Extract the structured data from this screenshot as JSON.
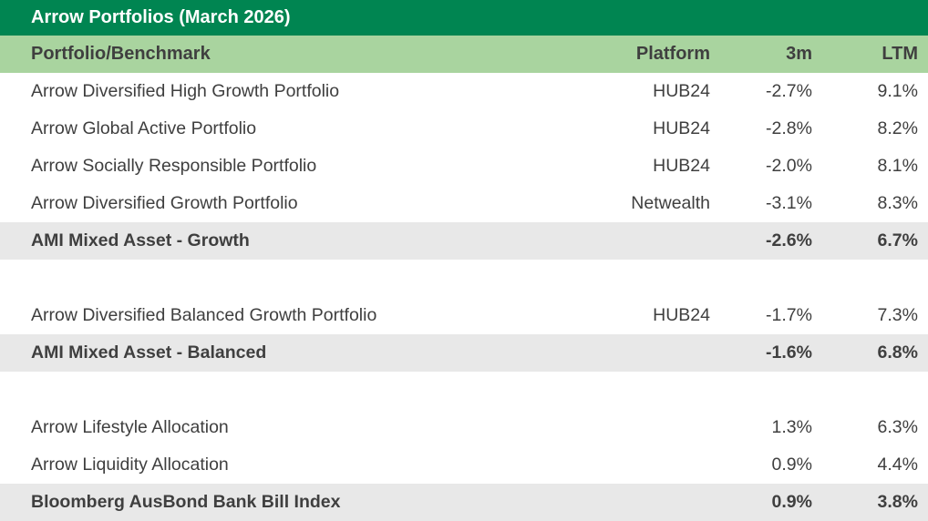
{
  "title_bar": {
    "title": "Arrow Portfolios (March 2026)"
  },
  "table": {
    "columns": {
      "name": "Portfolio/Benchmark",
      "platform": "Platform",
      "m3": "3m",
      "ltm": "LTM"
    },
    "rows": [
      {
        "type": "data",
        "name": "Arrow Diversified High Growth Portfolio",
        "platform": "HUB24",
        "m3": "-2.7%",
        "ltm": "9.1%"
      },
      {
        "type": "data",
        "name": "Arrow Global Active Portfolio",
        "platform": "HUB24",
        "m3": "-2.8%",
        "ltm": "8.2%"
      },
      {
        "type": "data",
        "name": "Arrow Socially Responsible Portfolio",
        "platform": "HUB24",
        "m3": "-2.0%",
        "ltm": "8.1%"
      },
      {
        "type": "data",
        "name": "Arrow Diversified Growth Portfolio",
        "platform": "Netwealth",
        "m3": "-3.1%",
        "ltm": "8.3%"
      },
      {
        "type": "summary",
        "name": "AMI Mixed Asset - Growth",
        "platform": "",
        "m3": "-2.6%",
        "ltm": "6.7%"
      },
      {
        "type": "spacer",
        "name": "",
        "platform": "",
        "m3": "",
        "ltm": ""
      },
      {
        "type": "data",
        "name": "Arrow Diversified Balanced Growth Portfolio",
        "platform": "HUB24",
        "m3": "-1.7%",
        "ltm": "7.3%"
      },
      {
        "type": "summary",
        "name": "AMI Mixed Asset - Balanced",
        "platform": "",
        "m3": "-1.6%",
        "ltm": "6.8%"
      },
      {
        "type": "spacer",
        "name": "",
        "platform": "",
        "m3": "",
        "ltm": ""
      },
      {
        "type": "data",
        "name": "Arrow Lifestyle Allocation",
        "platform": "",
        "m3": "1.3%",
        "ltm": "6.3%"
      },
      {
        "type": "data",
        "name": "Arrow Liquidity Allocation",
        "platform": "",
        "m3": "0.9%",
        "ltm": "4.4%"
      },
      {
        "type": "summary",
        "name": "Bloomberg AusBond Bank Bill Index",
        "platform": "",
        "m3": "0.9%",
        "ltm": "3.8%"
      }
    ]
  },
  "colors": {
    "title_bg": "#008551",
    "header_bg": "#a9d49f",
    "summary_bg": "#e8e8e8",
    "text": "#3f3f3f",
    "title_text": "#ffffff"
  }
}
